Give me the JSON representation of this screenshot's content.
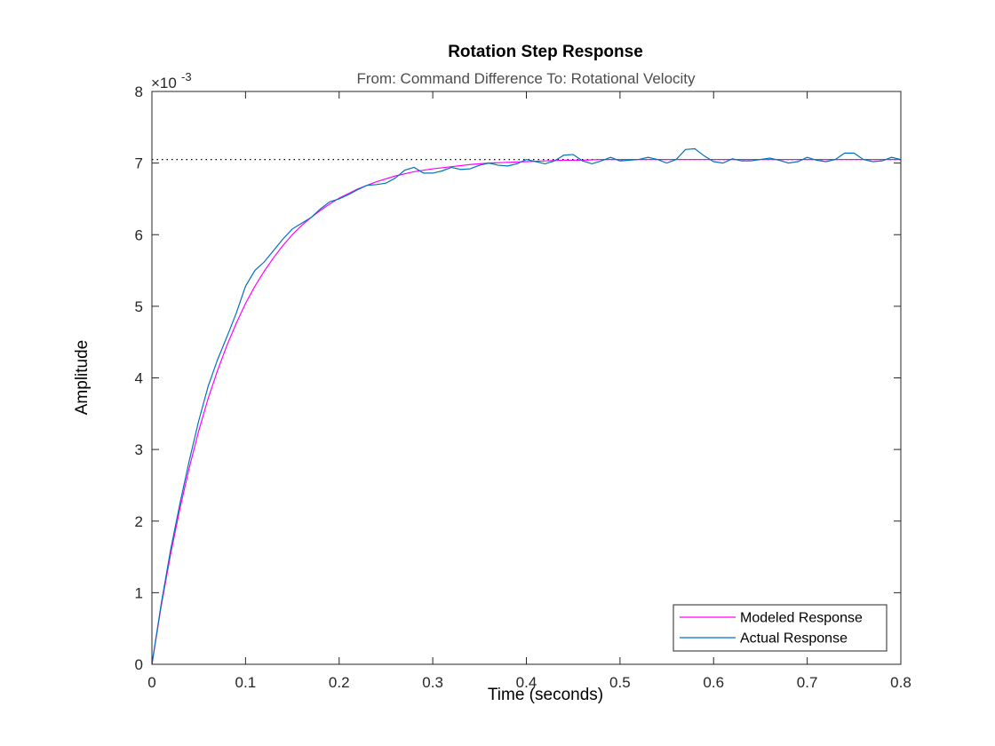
{
  "chart_data": {
    "type": "line",
    "title": "Rotation Step Response",
    "subtitle": "From: Command Difference  To: Rotational Velocity",
    "xlabel": "Time (seconds)",
    "ylabel": "Amplitude",
    "exponent_label": "×10",
    "exponent_power": "-3",
    "xlim": [
      0,
      0.8
    ],
    "ylim": [
      0,
      0.008
    ],
    "xticks": [
      0,
      0.1,
      0.2,
      0.3,
      0.4,
      0.5,
      0.6,
      0.7,
      0.8
    ],
    "xtick_labels": [
      "0",
      "0.1",
      "0.2",
      "0.3",
      "0.4",
      "0.5",
      "0.6",
      "0.7",
      "0.8"
    ],
    "yticks": [
      0,
      0.001,
      0.002,
      0.003,
      0.004,
      0.005,
      0.006,
      0.007,
      0.008
    ],
    "ytick_labels": [
      "0",
      "1",
      "2",
      "3",
      "4",
      "5",
      "6",
      "7",
      "8"
    ],
    "steady_state": 0.00705,
    "grid": false,
    "legend_position": "bottom-right",
    "series": [
      {
        "name": "Modeled Response",
        "color": "#ff00ff",
        "x": [
          0,
          0.01,
          0.02,
          0.03,
          0.04,
          0.05,
          0.06,
          0.07,
          0.08,
          0.09,
          0.1,
          0.11,
          0.12,
          0.13,
          0.14,
          0.15,
          0.16,
          0.17,
          0.18,
          0.19,
          0.2,
          0.22,
          0.24,
          0.26,
          0.28,
          0.3,
          0.32,
          0.34,
          0.36,
          0.38,
          0.4,
          0.42,
          0.44,
          0.46,
          0.48,
          0.5,
          0.55,
          0.6,
          0.65,
          0.7,
          0.75,
          0.8
        ],
        "y": [
          0,
          0.00082,
          0.00154,
          0.00218,
          0.00275,
          0.00326,
          0.00371,
          0.0041,
          0.00445,
          0.00476,
          0.00504,
          0.00528,
          0.00549,
          0.00568,
          0.00585,
          0.006,
          0.00613,
          0.00624,
          0.00634,
          0.00643,
          0.00651,
          0.00664,
          0.00674,
          0.00682,
          0.00688,
          0.00692,
          0.00695,
          0.00698,
          0.007,
          0.00701,
          0.00702,
          0.00703,
          0.00704,
          0.00704,
          0.00705,
          0.00705,
          0.00705,
          0.00705,
          0.00705,
          0.00705,
          0.00705,
          0.00705
        ]
      },
      {
        "name": "Actual Response",
        "color": "#0072bd",
        "x": [
          0,
          0.01,
          0.02,
          0.03,
          0.04,
          0.05,
          0.06,
          0.07,
          0.08,
          0.09,
          0.1,
          0.11,
          0.12,
          0.13,
          0.14,
          0.15,
          0.16,
          0.17,
          0.18,
          0.19,
          0.2,
          0.21,
          0.22,
          0.23,
          0.24,
          0.25,
          0.26,
          0.27,
          0.28,
          0.29,
          0.3,
          0.31,
          0.32,
          0.33,
          0.34,
          0.35,
          0.36,
          0.37,
          0.38,
          0.39,
          0.4,
          0.41,
          0.42,
          0.43,
          0.44,
          0.45,
          0.46,
          0.47,
          0.48,
          0.49,
          0.5,
          0.51,
          0.52,
          0.53,
          0.54,
          0.55,
          0.56,
          0.57,
          0.58,
          0.59,
          0.6,
          0.61,
          0.62,
          0.63,
          0.64,
          0.65,
          0.66,
          0.67,
          0.68,
          0.69,
          0.7,
          0.71,
          0.72,
          0.73,
          0.74,
          0.75,
          0.76,
          0.77,
          0.78,
          0.79,
          0.8
        ],
        "y": [
          0,
          0.00085,
          0.0016,
          0.00225,
          0.00285,
          0.0034,
          0.00388,
          0.00425,
          0.00457,
          0.0049,
          0.00528,
          0.0055,
          0.00562,
          0.00578,
          0.00594,
          0.00608,
          0.00616,
          0.00624,
          0.00636,
          0.00646,
          0.0065,
          0.00656,
          0.00663,
          0.00669,
          0.0067,
          0.00672,
          0.00679,
          0.0069,
          0.00694,
          0.00686,
          0.00686,
          0.00689,
          0.00694,
          0.00691,
          0.00692,
          0.00697,
          0.007,
          0.00697,
          0.00696,
          0.00699,
          0.00705,
          0.00702,
          0.00699,
          0.00703,
          0.00711,
          0.00712,
          0.00703,
          0.00699,
          0.00703,
          0.00708,
          0.00703,
          0.00704,
          0.00705,
          0.00708,
          0.00705,
          0.007,
          0.00705,
          0.00719,
          0.0072,
          0.0071,
          0.00702,
          0.007,
          0.00706,
          0.00703,
          0.00703,
          0.00705,
          0.00707,
          0.00704,
          0.007,
          0.00702,
          0.00708,
          0.00704,
          0.00702,
          0.00705,
          0.00714,
          0.00714,
          0.00705,
          0.00702,
          0.00703,
          0.00708,
          0.00705
        ]
      }
    ]
  }
}
